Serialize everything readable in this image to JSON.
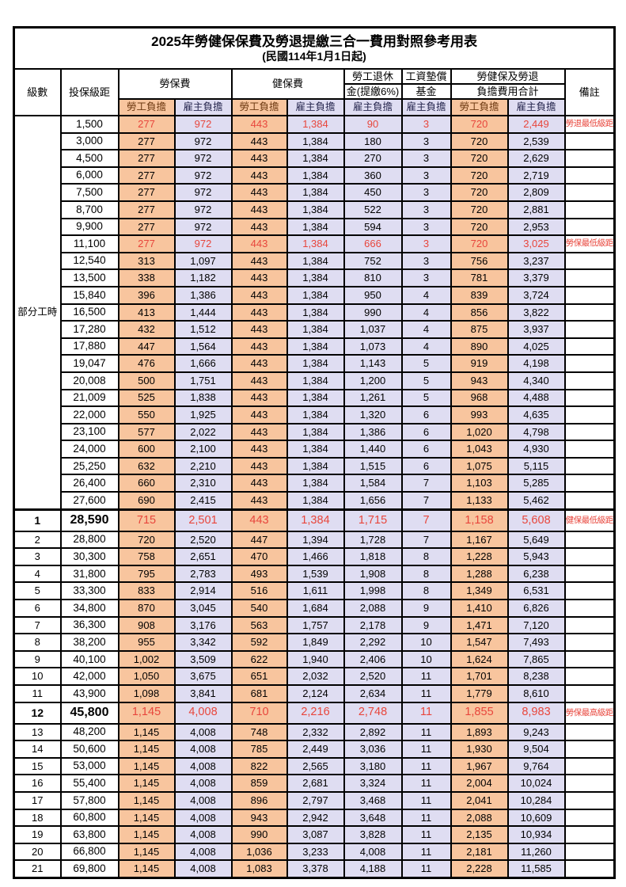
{
  "title": {
    "main": "2025年勞健保保費及勞退提繳三合一費用對照參考用表",
    "date_note": "(民國114年1月1日起)"
  },
  "colors": {
    "employee_cell_bg": "#F8C59E",
    "employer_cell_bg": "#DFDDF2",
    "highlight_red": "#E8463C",
    "border": "#000000",
    "background": "#FFFFFF"
  },
  "header": {
    "level": "級數",
    "bracket": "投保級距",
    "labor_insurance": "勞保費",
    "health_insurance": "健保費",
    "pension_top": "勞工退休",
    "pension_bottom": "金(提繳6%)",
    "wage_fund_top": "工資墊償",
    "wage_fund_bottom": "基金",
    "total_top": "勞健保及勞退",
    "total_bottom": "負擔費用合計",
    "remarks": "備註",
    "employee_share": "勞工負擔",
    "employer_share": "雇主負擔"
  },
  "sections": {
    "part_time_label": "部分工時"
  },
  "rows": [
    {
      "level": "",
      "bracket": "1,500",
      "values": [
        "277",
        "972",
        "443",
        "1,384",
        "90",
        "3",
        "720",
        "2,449"
      ],
      "note": "勞退最低級距",
      "red": true,
      "em": false
    },
    {
      "level": "",
      "bracket": "3,000",
      "values": [
        "277",
        "972",
        "443",
        "1,384",
        "180",
        "3",
        "720",
        "2,539"
      ],
      "note": "",
      "red": false,
      "em": false
    },
    {
      "level": "",
      "bracket": "4,500",
      "values": [
        "277",
        "972",
        "443",
        "1,384",
        "270",
        "3",
        "720",
        "2,629"
      ],
      "note": "",
      "red": false,
      "em": false
    },
    {
      "level": "",
      "bracket": "6,000",
      "values": [
        "277",
        "972",
        "443",
        "1,384",
        "360",
        "3",
        "720",
        "2,719"
      ],
      "note": "",
      "red": false,
      "em": false
    },
    {
      "level": "",
      "bracket": "7,500",
      "values": [
        "277",
        "972",
        "443",
        "1,384",
        "450",
        "3",
        "720",
        "2,809"
      ],
      "note": "",
      "red": false,
      "em": false
    },
    {
      "level": "",
      "bracket": "8,700",
      "values": [
        "277",
        "972",
        "443",
        "1,384",
        "522",
        "3",
        "720",
        "2,881"
      ],
      "note": "",
      "red": false,
      "em": false
    },
    {
      "level": "",
      "bracket": "9,900",
      "values": [
        "277",
        "972",
        "443",
        "1,384",
        "594",
        "3",
        "720",
        "2,953"
      ],
      "note": "",
      "red": false,
      "em": false
    },
    {
      "level": "",
      "bracket": "11,100",
      "values": [
        "277",
        "972",
        "443",
        "1,384",
        "666",
        "3",
        "720",
        "3,025"
      ],
      "note": "勞保最低級距",
      "red": true,
      "em": false
    },
    {
      "level": "",
      "bracket": "12,540",
      "values": [
        "313",
        "1,097",
        "443",
        "1,384",
        "752",
        "3",
        "756",
        "3,237"
      ],
      "note": "",
      "red": false,
      "em": false
    },
    {
      "level": "",
      "bracket": "13,500",
      "values": [
        "338",
        "1,182",
        "443",
        "1,384",
        "810",
        "3",
        "781",
        "3,379"
      ],
      "note": "",
      "red": false,
      "em": false
    },
    {
      "level": "",
      "bracket": "15,840",
      "values": [
        "396",
        "1,386",
        "443",
        "1,384",
        "950",
        "4",
        "839",
        "3,724"
      ],
      "note": "",
      "red": false,
      "em": false
    },
    {
      "level": "",
      "bracket": "16,500",
      "values": [
        "413",
        "1,444",
        "443",
        "1,384",
        "990",
        "4",
        "856",
        "3,822"
      ],
      "note": "",
      "red": false,
      "em": false
    },
    {
      "level": "",
      "bracket": "17,280",
      "values": [
        "432",
        "1,512",
        "443",
        "1,384",
        "1,037",
        "4",
        "875",
        "3,937"
      ],
      "note": "",
      "red": false,
      "em": false
    },
    {
      "level": "",
      "bracket": "17,880",
      "values": [
        "447",
        "1,564",
        "443",
        "1,384",
        "1,073",
        "4",
        "890",
        "4,025"
      ],
      "note": "",
      "red": false,
      "em": false
    },
    {
      "level": "",
      "bracket": "19,047",
      "values": [
        "476",
        "1,666",
        "443",
        "1,384",
        "1,143",
        "5",
        "919",
        "4,198"
      ],
      "note": "",
      "red": false,
      "em": false
    },
    {
      "level": "",
      "bracket": "20,008",
      "values": [
        "500",
        "1,751",
        "443",
        "1,384",
        "1,200",
        "5",
        "943",
        "4,340"
      ],
      "note": "",
      "red": false,
      "em": false
    },
    {
      "level": "",
      "bracket": "21,009",
      "values": [
        "525",
        "1,838",
        "443",
        "1,384",
        "1,261",
        "5",
        "968",
        "4,488"
      ],
      "note": "",
      "red": false,
      "em": false
    },
    {
      "level": "",
      "bracket": "22,000",
      "values": [
        "550",
        "1,925",
        "443",
        "1,384",
        "1,320",
        "6",
        "993",
        "4,635"
      ],
      "note": "",
      "red": false,
      "em": false
    },
    {
      "level": "",
      "bracket": "23,100",
      "values": [
        "577",
        "2,022",
        "443",
        "1,384",
        "1,386",
        "6",
        "1,020",
        "4,798"
      ],
      "note": "",
      "red": false,
      "em": false
    },
    {
      "level": "",
      "bracket": "24,000",
      "values": [
        "600",
        "2,100",
        "443",
        "1,384",
        "1,440",
        "6",
        "1,043",
        "4,930"
      ],
      "note": "",
      "red": false,
      "em": false
    },
    {
      "level": "",
      "bracket": "25,250",
      "values": [
        "632",
        "2,210",
        "443",
        "1,384",
        "1,515",
        "6",
        "1,075",
        "5,115"
      ],
      "note": "",
      "red": false,
      "em": false
    },
    {
      "level": "",
      "bracket": "26,400",
      "values": [
        "660",
        "2,310",
        "443",
        "1,384",
        "1,584",
        "7",
        "1,103",
        "5,285"
      ],
      "note": "",
      "red": false,
      "em": false
    },
    {
      "level": "",
      "bracket": "27,600",
      "values": [
        "690",
        "2,415",
        "443",
        "1,384",
        "1,656",
        "7",
        "1,133",
        "5,462"
      ],
      "note": "",
      "red": false,
      "em": false
    },
    {
      "level": "1",
      "bracket": "28,590",
      "values": [
        "715",
        "2,501",
        "443",
        "1,384",
        "1,715",
        "7",
        "1,158",
        "5,608"
      ],
      "note": "健保最低級距",
      "red": true,
      "em": true
    },
    {
      "level": "2",
      "bracket": "28,800",
      "values": [
        "720",
        "2,520",
        "447",
        "1,394",
        "1,728",
        "7",
        "1,167",
        "5,649"
      ],
      "note": "",
      "red": false,
      "em": false
    },
    {
      "level": "3",
      "bracket": "30,300",
      "values": [
        "758",
        "2,651",
        "470",
        "1,466",
        "1,818",
        "8",
        "1,228",
        "5,943"
      ],
      "note": "",
      "red": false,
      "em": false
    },
    {
      "level": "4",
      "bracket": "31,800",
      "values": [
        "795",
        "2,783",
        "493",
        "1,539",
        "1,908",
        "8",
        "1,288",
        "6,238"
      ],
      "note": "",
      "red": false,
      "em": false
    },
    {
      "level": "5",
      "bracket": "33,300",
      "values": [
        "833",
        "2,914",
        "516",
        "1,611",
        "1,998",
        "8",
        "1,349",
        "6,531"
      ],
      "note": "",
      "red": false,
      "em": false
    },
    {
      "level": "6",
      "bracket": "34,800",
      "values": [
        "870",
        "3,045",
        "540",
        "1,684",
        "2,088",
        "9",
        "1,410",
        "6,826"
      ],
      "note": "",
      "red": false,
      "em": false
    },
    {
      "level": "7",
      "bracket": "36,300",
      "values": [
        "908",
        "3,176",
        "563",
        "1,757",
        "2,178",
        "9",
        "1,471",
        "7,120"
      ],
      "note": "",
      "red": false,
      "em": false
    },
    {
      "level": "8",
      "bracket": "38,200",
      "values": [
        "955",
        "3,342",
        "592",
        "1,849",
        "2,292",
        "10",
        "1,547",
        "7,493"
      ],
      "note": "",
      "red": false,
      "em": false
    },
    {
      "level": "9",
      "bracket": "40,100",
      "values": [
        "1,002",
        "3,509",
        "622",
        "1,940",
        "2,406",
        "10",
        "1,624",
        "7,865"
      ],
      "note": "",
      "red": false,
      "em": false
    },
    {
      "level": "10",
      "bracket": "42,000",
      "values": [
        "1,050",
        "3,675",
        "651",
        "2,032",
        "2,520",
        "11",
        "1,701",
        "8,238"
      ],
      "note": "",
      "red": false,
      "em": false
    },
    {
      "level": "11",
      "bracket": "43,900",
      "values": [
        "1,098",
        "3,841",
        "681",
        "2,124",
        "2,634",
        "11",
        "1,779",
        "8,610"
      ],
      "note": "",
      "red": false,
      "em": false
    },
    {
      "level": "12",
      "bracket": "45,800",
      "values": [
        "1,145",
        "4,008",
        "710",
        "2,216",
        "2,748",
        "11",
        "1,855",
        "8,983"
      ],
      "note": "勞保最高級距",
      "red": true,
      "em": true
    },
    {
      "level": "13",
      "bracket": "48,200",
      "values": [
        "1,145",
        "4,008",
        "748",
        "2,332",
        "2,892",
        "11",
        "1,893",
        "9,243"
      ],
      "note": "",
      "red": false,
      "em": false
    },
    {
      "level": "14",
      "bracket": "50,600",
      "values": [
        "1,145",
        "4,008",
        "785",
        "2,449",
        "3,036",
        "11",
        "1,930",
        "9,504"
      ],
      "note": "",
      "red": false,
      "em": false
    },
    {
      "level": "15",
      "bracket": "53,000",
      "values": [
        "1,145",
        "4,008",
        "822",
        "2,565",
        "3,180",
        "11",
        "1,967",
        "9,764"
      ],
      "note": "",
      "red": false,
      "em": false
    },
    {
      "level": "16",
      "bracket": "55,400",
      "values": [
        "1,145",
        "4,008",
        "859",
        "2,681",
        "3,324",
        "11",
        "2,004",
        "10,024"
      ],
      "note": "",
      "red": false,
      "em": false
    },
    {
      "level": "17",
      "bracket": "57,800",
      "values": [
        "1,145",
        "4,008",
        "896",
        "2,797",
        "3,468",
        "11",
        "2,041",
        "10,284"
      ],
      "note": "",
      "red": false,
      "em": false
    },
    {
      "level": "18",
      "bracket": "60,800",
      "values": [
        "1,145",
        "4,008",
        "943",
        "2,942",
        "3,648",
        "11",
        "2,088",
        "10,609"
      ],
      "note": "",
      "red": false,
      "em": false
    },
    {
      "level": "19",
      "bracket": "63,800",
      "values": [
        "1,145",
        "4,008",
        "990",
        "3,087",
        "3,828",
        "11",
        "2,135",
        "10,934"
      ],
      "note": "",
      "red": false,
      "em": false
    },
    {
      "level": "20",
      "bracket": "66,800",
      "values": [
        "1,145",
        "4,008",
        "1,036",
        "3,233",
        "4,008",
        "11",
        "2,181",
        "11,260"
      ],
      "note": "",
      "red": false,
      "em": false
    },
    {
      "level": "21",
      "bracket": "69,800",
      "values": [
        "1,145",
        "4,008",
        "1,083",
        "3,378",
        "4,188",
        "11",
        "2,228",
        "11,585"
      ],
      "note": "",
      "red": false,
      "em": false
    }
  ]
}
